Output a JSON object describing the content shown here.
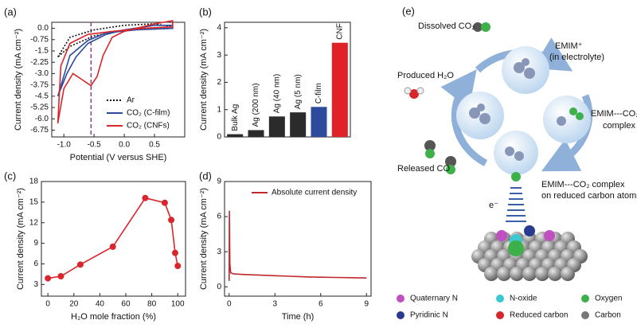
{
  "chart_data": [
    {
      "type": "line",
      "panel": "(a)",
      "xlabel": "Potential (V versus SHE)",
      "ylabel": "Current density (mA cm⁻²)",
      "xlim": [
        -1.2,
        1.0
      ],
      "ylim": [
        -7.2,
        0.4
      ],
      "xticks": [
        {
          "value": -1,
          "label": "-1.0"
        },
        -0.5,
        {
          "value": 0,
          "label": "0.0"
        },
        0.5
      ],
      "yticks": [
        {
          "value": 0,
          "label": "0.0"
        },
        -0.75,
        -1.5,
        -2.25,
        {
          "value": -3,
          "label": "-3.0"
        },
        -3.75,
        -4.5,
        -5.25,
        {
          "value": -6,
          "label": "-6.0"
        },
        -6.75
      ],
      "vline": {
        "x": -0.55,
        "color": "#8e3a8e"
      },
      "legend": "lower right",
      "series": [
        {
          "name": "Ar",
          "color": "#111111",
          "style": "dotted",
          "x": [
            -1.1,
            -0.9,
            -0.5,
            0,
            0.5,
            0.8,
            0.8,
            0,
            -0.5,
            -0.9,
            -1.1
          ],
          "values": [
            -1.9,
            -0.6,
            -0.1,
            0.2,
            0.3,
            0.1,
            0.0,
            -0.1,
            -0.5,
            -1.2,
            -1.9
          ]
        },
        {
          "name": "CO₂ (C-film)",
          "color": "#2e4a9a",
          "style": "solid",
          "x": [
            -1.1,
            -0.95,
            -0.8,
            -0.6,
            -0.3,
            0,
            0.5,
            0.8,
            0.8,
            0.2,
            -0.3,
            -0.6,
            -0.9,
            -1.1
          ],
          "values": [
            -4.5,
            -3.0,
            -1.9,
            -1.0,
            -0.4,
            -0.1,
            0.2,
            0.2,
            0.0,
            -0.1,
            -0.3,
            -0.8,
            -1.8,
            -4.5
          ]
        },
        {
          "name": "CO₂ (CNFs)",
          "color": "#d9252b",
          "style": "solid",
          "x": [
            -1.1,
            -1.0,
            -0.85,
            -0.7,
            -0.55,
            -0.45,
            -0.35,
            -0.2,
            0,
            0.5,
            0.8,
            0.8,
            0.3,
            -0.2,
            -0.6,
            -0.9,
            -1.05,
            -1.1
          ],
          "values": [
            -6.3,
            -4.0,
            -3.0,
            -3.4,
            -3.8,
            -3.2,
            -1.8,
            -0.6,
            -0.2,
            0.3,
            0.5,
            0.1,
            0.0,
            -0.2,
            -0.4,
            -1.0,
            -2.5,
            -6.3
          ]
        }
      ]
    },
    {
      "type": "bar",
      "panel": "(b)",
      "ylabel": "Current density (mA cm⁻²)",
      "categories": [
        "Bulk Ag",
        "Ag (200 nm)",
        "Ag (40 nm)",
        "Ag (5 nm)",
        "C-film",
        "CNF"
      ],
      "values": [
        0.1,
        0.25,
        0.75,
        0.9,
        1.1,
        3.45
      ],
      "colors": [
        "#2b2b2b",
        "#2b2b2b",
        "#2b2b2b",
        "#2b2b2b",
        "#2e4a9a",
        "#e02228"
      ],
      "ylim": [
        0,
        4.2
      ],
      "yticks": [
        0,
        1,
        2,
        3,
        4
      ]
    },
    {
      "type": "line",
      "panel": "(c)",
      "xlabel": "H₂O mole fraction (%)",
      "ylabel": "Current density (mA cm⁻²)",
      "x": [
        0,
        10,
        25,
        50,
        75,
        90,
        95,
        98,
        100
      ],
      "xlim": [
        -5,
        106
      ],
      "ylim": [
        1.3,
        18
      ],
      "xticks": [
        0,
        20,
        40,
        60,
        80,
        100
      ],
      "yticks": [
        3,
        6,
        9,
        12,
        15,
        18
      ],
      "series": [
        {
          "color": "#d9252b",
          "style": "solid",
          "marker": true,
          "values": [
            3.9,
            4.2,
            5.9,
            8.5,
            15.6,
            14.9,
            12.4,
            7.6,
            5.7
          ]
        }
      ]
    },
    {
      "type": "line",
      "panel": "(d)",
      "xlabel": "Time (h)",
      "ylabel": "Current density (mA cm⁻²)",
      "x": [
        0,
        0.02,
        0.05,
        0.1,
        0.3,
        1,
        2,
        3,
        4,
        5,
        6,
        7,
        8,
        9
      ],
      "xlim": [
        -0.3,
        9.3
      ],
      "ylim": [
        -0.8,
        9
      ],
      "xticks": [
        0,
        3,
        6,
        9
      ],
      "yticks": [
        0,
        3,
        6,
        9
      ],
      "legend": "upper right",
      "series": [
        {
          "name": "Absolute current density",
          "color": "#c0282d",
          "style": "solid",
          "values": [
            0.5,
            6.5,
            2.0,
            1.2,
            1.1,
            1.05,
            1.0,
            0.95,
            0.9,
            0.85,
            0.82,
            0.8,
            0.78,
            0.75
          ]
        }
      ]
    }
  ],
  "diagram": {
    "panel": "(e)",
    "labels": {
      "dissolved": "Dissolved CO₂",
      "emim": "EMIM⁺",
      "emim_note": "(in electrolyte)",
      "water": "Produced H₂O",
      "complex": "EMIM---CO₂",
      "complex_note": "complex",
      "co": "Released CO",
      "surface": "EMIM---CO₂ complex",
      "surface_note": "on reduced carbon atoms",
      "electron": "e⁻"
    },
    "legend": [
      {
        "label": "Quaternary N",
        "color": "#c04fc0"
      },
      {
        "label": "N-oxide",
        "color": "#3cc8d0"
      },
      {
        "label": "Oxygen",
        "color": "#3db04a"
      },
      {
        "label": "Pyridinic N",
        "color": "#2a3a90"
      },
      {
        "label": "Reduced carbon",
        "color": "#d8262c"
      },
      {
        "label": "Carbon",
        "color": "#777777"
      }
    ]
  }
}
